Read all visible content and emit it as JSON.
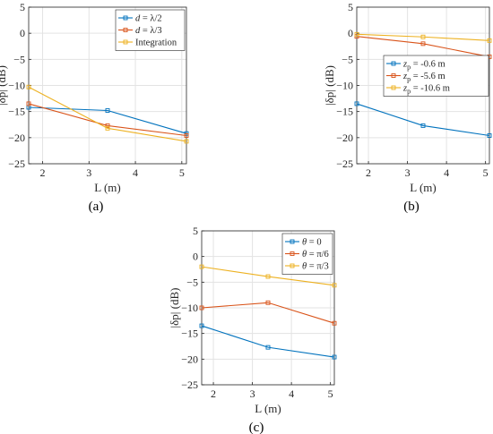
{
  "chart_data": [
    {
      "type": "line",
      "panel_label": "(a)",
      "xlabel": "L (m)",
      "ylabel": "|δp| (dB)",
      "xlim": [
        1.7,
        5.1
      ],
      "ylim": [
        -25,
        5
      ],
      "xticks": [
        "2",
        "3",
        "4",
        "5"
      ],
      "yticks": [
        "5",
        "0",
        "-5",
        "-10",
        "-15",
        "-20",
        "-25"
      ],
      "legend_position": "top-right",
      "x": [
        1.7,
        3.4,
        5.1
      ],
      "series": [
        {
          "name": "d = λ/2",
          "color": "#0072BD",
          "values": [
            -14.2,
            -14.8,
            -19.2
          ]
        },
        {
          "name": "d = λ/3",
          "color": "#D95319",
          "values": [
            -13.5,
            -17.7,
            -19.6
          ]
        },
        {
          "name": "Integration",
          "color": "#EDB120",
          "values": [
            -10.3,
            -18.2,
            -20.7
          ]
        }
      ]
    },
    {
      "type": "line",
      "panel_label": "(b)",
      "xlabel": "L (m)",
      "ylabel": "|δp| (dB)",
      "xlim": [
        1.7,
        5.1
      ],
      "ylim": [
        -25,
        5
      ],
      "xticks": [
        "2",
        "3",
        "4",
        "5"
      ],
      "yticks": [
        "5",
        "0",
        "-5",
        "-10",
        "-15",
        "-20",
        "-25"
      ],
      "legend_position": "middle-right",
      "x": [
        1.7,
        3.4,
        5.1
      ],
      "series": [
        {
          "name": "zp = -0.6 m",
          "color": "#0072BD",
          "values": [
            -13.5,
            -17.7,
            -19.6
          ]
        },
        {
          "name": "zp = -5.6 m",
          "color": "#D95319",
          "values": [
            -0.6,
            -2.0,
            -4.5
          ]
        },
        {
          "name": "zp = -10.6 m",
          "color": "#EDB120",
          "values": [
            -0.2,
            -0.7,
            -1.4
          ]
        }
      ]
    },
    {
      "type": "line",
      "panel_label": "(c)",
      "xlabel": "L (m)",
      "ylabel": "|δp| (dB)",
      "xlim": [
        1.7,
        5.1
      ],
      "ylim": [
        -25,
        5
      ],
      "xticks": [
        "2",
        "3",
        "4",
        "5"
      ],
      "yticks": [
        "5",
        "0",
        "-5",
        "-10",
        "-15",
        "-20",
        "-25"
      ],
      "legend_position": "top-right",
      "x": [
        1.7,
        3.4,
        5.1
      ],
      "series": [
        {
          "name": "θ = 0",
          "color": "#0072BD",
          "values": [
            -13.5,
            -17.7,
            -19.6
          ]
        },
        {
          "name": "θ = π/6",
          "color": "#D95319",
          "values": [
            -10.0,
            -9.0,
            -13.0
          ]
        },
        {
          "name": "θ = π/3",
          "color": "#EDB120",
          "values": [
            -2.0,
            -3.9,
            -5.6
          ]
        }
      ]
    }
  ]
}
